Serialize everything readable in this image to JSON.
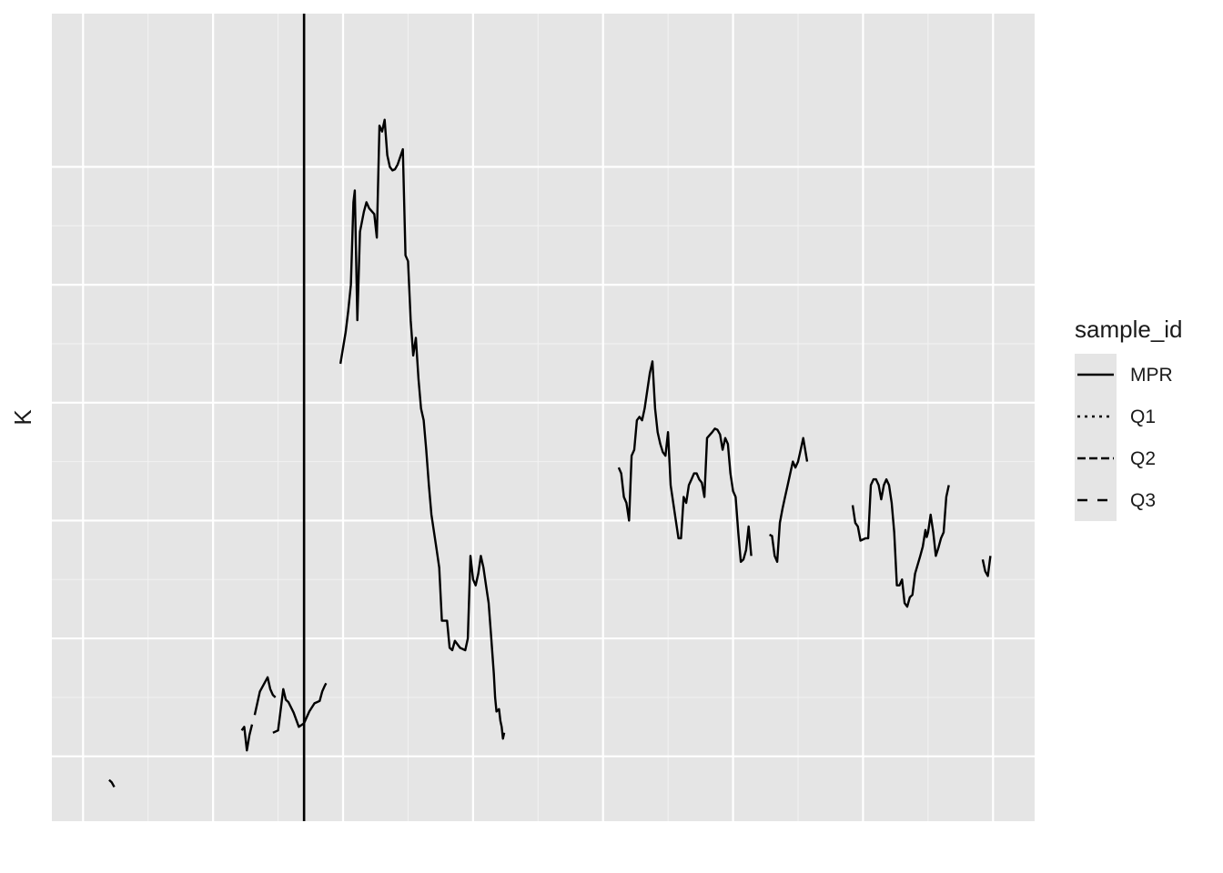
{
  "chart_data": {
    "type": "line",
    "title": "",
    "xlabel": "",
    "ylabel": "K",
    "xlim": [
      -1.2,
      36.6
    ],
    "ylim": [
      -0.55,
      6.3
    ],
    "x_gridlines": [
      0,
      5,
      10,
      15,
      20,
      25,
      30,
      35
    ],
    "y_gridlines": [
      0,
      1,
      2,
      3,
      4,
      5
    ],
    "grid": true,
    "background": "#e5e5e5",
    "line_color": "#000000",
    "vline_x": 8.5,
    "legend": {
      "title": "sample_id",
      "position": "right",
      "entries": [
        {
          "name": "MPR",
          "dash": "solid"
        },
        {
          "name": "Q1",
          "dash": "dotted"
        },
        {
          "name": "Q2",
          "dash": "dashed"
        },
        {
          "name": "Q3",
          "dash": "longdash"
        }
      ]
    },
    "series": [
      {
        "name": "MPR",
        "segments": [
          [
            [
              1.0,
              -0.2
            ],
            [
              1.1,
              -0.22
            ],
            [
              1.2,
              -0.26
            ]
          ],
          [
            [
              6.1,
              0.22
            ],
            [
              6.2,
              0.25
            ],
            [
              6.3,
              0.05
            ],
            [
              6.4,
              0.18
            ],
            [
              6.5,
              0.27
            ]
          ],
          [
            [
              6.6,
              0.35
            ],
            [
              6.8,
              0.55
            ],
            [
              7.1,
              0.67
            ],
            [
              7.2,
              0.57
            ],
            [
              7.3,
              0.52
            ],
            [
              7.4,
              0.5
            ]
          ],
          [
            [
              7.3,
              0.2
            ],
            [
              7.5,
              0.22
            ],
            [
              7.7,
              0.57
            ],
            [
              7.8,
              0.48
            ],
            [
              7.9,
              0.46
            ],
            [
              8.1,
              0.37
            ],
            [
              8.3,
              0.25
            ],
            [
              8.5,
              0.28
            ],
            [
              8.7,
              0.38
            ],
            [
              8.9,
              0.45
            ],
            [
              9.1,
              0.47
            ],
            [
              9.2,
              0.55
            ],
            [
              9.3,
              0.6
            ],
            [
              9.35,
              0.62
            ]
          ],
          [
            [
              9.9,
              3.33
            ],
            [
              10.1,
              3.6
            ],
            [
              10.2,
              3.78
            ],
            [
              10.3,
              4.0
            ],
            [
              10.4,
              4.7
            ],
            [
              10.45,
              4.8
            ],
            [
              10.55,
              3.7
            ],
            [
              10.65,
              4.45
            ],
            [
              10.8,
              4.62
            ],
            [
              10.9,
              4.7
            ],
            [
              11.0,
              4.65
            ],
            [
              11.2,
              4.6
            ],
            [
              11.3,
              4.4
            ],
            [
              11.4,
              5.35
            ],
            [
              11.5,
              5.3
            ],
            [
              11.6,
              5.4
            ],
            [
              11.7,
              5.1
            ],
            [
              11.8,
              5.0
            ],
            [
              11.9,
              4.97
            ],
            [
              12.0,
              4.98
            ],
            [
              12.1,
              5.02
            ],
            [
              12.3,
              5.15
            ],
            [
              12.4,
              4.25
            ],
            [
              12.5,
              4.2
            ],
            [
              12.6,
              3.7
            ],
            [
              12.7,
              3.4
            ],
            [
              12.8,
              3.55
            ],
            [
              12.9,
              3.2
            ],
            [
              13.0,
              2.95
            ],
            [
              13.1,
              2.85
            ],
            [
              13.2,
              2.6
            ],
            [
              13.3,
              2.3
            ],
            [
              13.4,
              2.05
            ],
            [
              13.6,
              1.75
            ],
            [
              13.7,
              1.6
            ],
            [
              13.8,
              1.15
            ],
            [
              13.9,
              1.15
            ],
            [
              14.0,
              1.15
            ],
            [
              14.1,
              0.92
            ],
            [
              14.2,
              0.9
            ],
            [
              14.3,
              0.98
            ],
            [
              14.4,
              0.95
            ],
            [
              14.5,
              0.92
            ],
            [
              14.7,
              0.9
            ],
            [
              14.8,
              1.0
            ],
            [
              14.9,
              1.7
            ],
            [
              15.0,
              1.5
            ],
            [
              15.1,
              1.45
            ],
            [
              15.2,
              1.55
            ],
            [
              15.3,
              1.7
            ],
            [
              15.4,
              1.6
            ],
            [
              15.5,
              1.45
            ],
            [
              15.6,
              1.3
            ],
            [
              15.7,
              1.0
            ],
            [
              15.8,
              0.7
            ],
            [
              15.85,
              0.5
            ],
            [
              15.9,
              0.38
            ],
            [
              16.0,
              0.4
            ],
            [
              16.05,
              0.3
            ],
            [
              16.1,
              0.25
            ],
            [
              16.15,
              0.15
            ],
            [
              16.2,
              0.2
            ]
          ],
          [
            [
              20.6,
              2.45
            ],
            [
              20.7,
              2.4
            ],
            [
              20.8,
              2.2
            ],
            [
              20.9,
              2.15
            ],
            [
              21.0,
              2.0
            ],
            [
              21.1,
              2.55
            ],
            [
              21.2,
              2.6
            ],
            [
              21.3,
              2.85
            ],
            [
              21.4,
              2.88
            ],
            [
              21.5,
              2.85
            ],
            [
              21.6,
              2.95
            ],
            [
              21.8,
              3.25
            ],
            [
              21.9,
              3.35
            ],
            [
              22.0,
              2.95
            ],
            [
              22.1,
              2.75
            ],
            [
              22.2,
              2.65
            ],
            [
              22.3,
              2.58
            ],
            [
              22.4,
              2.55
            ],
            [
              22.5,
              2.75
            ],
            [
              22.6,
              2.3
            ],
            [
              22.8,
              2.0
            ],
            [
              22.9,
              1.85
            ],
            [
              23.0,
              1.85
            ],
            [
              23.1,
              2.2
            ],
            [
              23.2,
              2.15
            ],
            [
              23.3,
              2.3
            ],
            [
              23.4,
              2.35
            ],
            [
              23.5,
              2.4
            ],
            [
              23.6,
              2.4
            ],
            [
              23.7,
              2.35
            ],
            [
              23.8,
              2.32
            ],
            [
              23.9,
              2.2
            ],
            [
              24.0,
              2.7
            ],
            [
              24.2,
              2.75
            ],
            [
              24.3,
              2.78
            ],
            [
              24.4,
              2.77
            ],
            [
              24.5,
              2.73
            ],
            [
              24.6,
              2.6
            ],
            [
              24.7,
              2.7
            ],
            [
              24.8,
              2.65
            ],
            [
              24.9,
              2.4
            ],
            [
              25.0,
              2.25
            ],
            [
              25.1,
              2.2
            ],
            [
              25.2,
              1.9
            ],
            [
              25.3,
              1.65
            ],
            [
              25.4,
              1.67
            ],
            [
              25.5,
              1.75
            ],
            [
              25.6,
              1.95
            ],
            [
              25.7,
              1.7
            ]
          ],
          [
            [
              26.4,
              1.88
            ],
            [
              26.5,
              1.87
            ],
            [
              26.6,
              1.7
            ],
            [
              26.7,
              1.65
            ],
            [
              26.8,
              1.98
            ],
            [
              26.9,
              2.1
            ],
            [
              27.0,
              2.2
            ],
            [
              27.1,
              2.3
            ],
            [
              27.2,
              2.4
            ],
            [
              27.3,
              2.5
            ],
            [
              27.4,
              2.45
            ],
            [
              27.5,
              2.5
            ],
            [
              27.6,
              2.6
            ],
            [
              27.7,
              2.7
            ],
            [
              27.85,
              2.5
            ]
          ],
          [
            [
              29.6,
              2.13
            ],
            [
              29.7,
              1.98
            ],
            [
              29.8,
              1.95
            ],
            [
              29.9,
              1.83
            ],
            [
              30.1,
              1.85
            ],
            [
              30.2,
              1.85
            ],
            [
              30.3,
              2.3
            ],
            [
              30.4,
              2.35
            ],
            [
              30.5,
              2.35
            ],
            [
              30.6,
              2.3
            ],
            [
              30.7,
              2.18
            ],
            [
              30.8,
              2.3
            ],
            [
              30.9,
              2.35
            ],
            [
              31.0,
              2.3
            ],
            [
              31.1,
              2.15
            ],
            [
              31.2,
              1.9
            ],
            [
              31.3,
              1.45
            ],
            [
              31.4,
              1.45
            ],
            [
              31.5,
              1.5
            ],
            [
              31.6,
              1.3
            ],
            [
              31.7,
              1.27
            ],
            [
              31.8,
              1.35
            ],
            [
              31.9,
              1.37
            ],
            [
              32.0,
              1.55
            ],
            [
              32.2,
              1.7
            ],
            [
              32.3,
              1.78
            ],
            [
              32.4,
              1.92
            ],
            [
              32.45,
              1.86
            ],
            [
              32.5,
              1.9
            ],
            [
              32.6,
              2.05
            ],
            [
              32.7,
              1.9
            ],
            [
              32.8,
              1.7
            ],
            [
              32.9,
              1.77
            ],
            [
              33.0,
              1.85
            ],
            [
              33.1,
              1.9
            ],
            [
              33.2,
              2.2
            ],
            [
              33.3,
              2.3
            ]
          ],
          [
            [
              34.6,
              1.67
            ],
            [
              34.7,
              1.57
            ],
            [
              34.8,
              1.53
            ],
            [
              34.9,
              1.7
            ]
          ]
        ]
      }
    ]
  }
}
